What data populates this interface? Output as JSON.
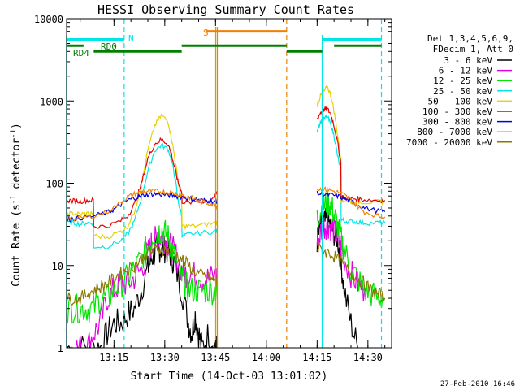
{
  "chart_data": {
    "type": "line",
    "title": "HESSI Observing Summary Count Rates",
    "xlabel": "Start Time (14-Oct-03 13:01:02)",
    "ylabel": "Count Rate (s⁻¹ detector⁻¹)",
    "ylabel_parts": {
      "base": "Count Rate (s",
      "exp1": "-1",
      "mid": " detector",
      "exp2": "-1",
      "end": ")"
    },
    "y_scale": "log",
    "ylim": [
      1,
      10000
    ],
    "xlim_minutes": [
      0,
      96
    ],
    "x_ticks": [
      {
        "label": "13:15",
        "t": 14
      },
      {
        "label": "13:30",
        "t": 29
      },
      {
        "label": "13:45",
        "t": 44
      },
      {
        "label": "14:00",
        "t": 59
      },
      {
        "label": "14:15",
        "t": 74
      },
      {
        "label": "14:30",
        "t": 89
      }
    ],
    "y_ticks": [
      {
        "label": "1",
        "v": 1
      },
      {
        "label": "10",
        "v": 10
      },
      {
        "label": "100",
        "v": 100
      },
      {
        "label": "1000",
        "v": 1000
      },
      {
        "label": "10000",
        "v": 10000
      }
    ],
    "legend": {
      "placement": "right",
      "header": [
        "Det 1,3,4,5,6,9,",
        "FDecim 1, Att 0"
      ],
      "entries": [
        {
          "name": "3 - 6 keV",
          "color": "#000000"
        },
        {
          "name": "6 - 12 keV",
          "color": "#e600e6"
        },
        {
          "name": "12 - 25 keV",
          "color": "#00e600"
        },
        {
          "name": "25 - 50 keV",
          "color": "#00e6e6"
        },
        {
          "name": "50 - 100 keV",
          "color": "#e6d200"
        },
        {
          "name": "100 - 300 keV",
          "color": "#e60000"
        },
        {
          "name": "300 - 800 keV",
          "color": "#0000e6"
        },
        {
          "name": "800 - 7000 keV",
          "color": "#f08000"
        },
        {
          "name": "7000 - 20000 keV",
          "color": "#8c7800"
        }
      ]
    },
    "annotations": [
      {
        "text": "N",
        "color": "#00e6e6"
      },
      {
        "text": "S",
        "color": "#f08000"
      },
      {
        "text": "RD0",
        "color": "#008000"
      },
      {
        "text": "RD4",
        "color": "#008000"
      }
    ],
    "flag_bars": [
      {
        "name": "N",
        "color": "#00e6e6",
        "level": 5600,
        "segments": [
          [
            0,
            17
          ],
          [
            75.5,
            93
          ]
        ]
      },
      {
        "name": "S",
        "color": "#f08000",
        "level": 7000,
        "segments": [
          [
            41,
            65
          ]
        ]
      },
      {
        "name": "RD0",
        "color": "#008000",
        "level": 4700,
        "segments": [
          [
            0,
            5
          ],
          [
            34,
            65
          ],
          [
            79,
            93
          ]
        ]
      },
      {
        "name": "RD4",
        "color": "#008000",
        "level": 4000,
        "segments": [
          [
            8,
            34
          ],
          [
            65,
            75.5
          ]
        ]
      }
    ],
    "night_markers_minutes": [
      17,
      65,
      93
    ],
    "day_markers_minutes": [
      0,
      75.5
    ],
    "saa_marker_minutes": 44.5,
    "series": [
      {
        "name": "3 - 6 keV",
        "color": "#000000",
        "x": [
          0,
          4,
          8,
          10,
          12,
          14,
          16,
          18,
          20,
          22,
          24,
          25,
          26,
          27,
          28,
          29,
          30,
          31,
          32,
          34,
          36,
          37,
          38,
          39,
          40,
          42,
          44,
          44.5,
          74,
          75,
          76,
          77,
          78,
          79,
          80,
          81,
          82,
          84,
          86
        ],
        "values": [
          1,
          1,
          1,
          1,
          1.5,
          2,
          2,
          2.5,
          3,
          5,
          9,
          12,
          14,
          16,
          16,
          16,
          15,
          13,
          10,
          5,
          2,
          1.5,
          2.5,
          1.5,
          1,
          1.5,
          1,
          1,
          20,
          28,
          32,
          35,
          30,
          25,
          22,
          12,
          5,
          2,
          1
        ]
      },
      {
        "name": "6 - 12 keV",
        "color": "#e600e6",
        "x": [
          0,
          2,
          4,
          6,
          8,
          10,
          12,
          14,
          16,
          18,
          20,
          22,
          24,
          25,
          26,
          27,
          28,
          29,
          30,
          31,
          32,
          34,
          35,
          36,
          38,
          40,
          42,
          44,
          44.5,
          74,
          75,
          76,
          77,
          78,
          79,
          80,
          81,
          82,
          84,
          86,
          88
        ],
        "values": [
          1,
          1,
          1,
          1,
          1.5,
          2,
          4,
          5,
          6,
          6,
          7,
          9,
          14,
          18,
          20,
          22,
          22,
          21,
          19,
          16,
          14,
          9,
          8,
          8,
          7.5,
          7,
          7,
          7.5,
          7,
          18,
          25,
          30,
          32,
          30,
          26,
          22,
          17,
          12,
          8,
          6,
          5
        ]
      },
      {
        "name": "12 - 25 keV",
        "color": "#00e600",
        "x": [
          0,
          2,
          4,
          6,
          8,
          10,
          12,
          14,
          16,
          18,
          20,
          22,
          24,
          26,
          27,
          28,
          29,
          30,
          31,
          32,
          34,
          35,
          36,
          38,
          40,
          42,
          44,
          44.5,
          74,
          75,
          76,
          77,
          78,
          79,
          80,
          81,
          82,
          84,
          86,
          88,
          90,
          92,
          94
        ],
        "values": [
          3,
          3,
          3,
          3,
          3,
          4,
          4,
          5,
          6,
          7,
          9,
          12,
          17,
          24,
          26,
          27,
          25,
          22,
          17,
          12,
          7,
          6,
          5,
          5,
          5,
          5,
          5,
          5,
          38,
          48,
          54,
          60,
          56,
          42,
          30,
          22,
          16,
          9,
          7,
          5,
          4.5,
          4,
          4
        ]
      },
      {
        "name": "25 - 50 keV",
        "color": "#00e6e6",
        "x": [
          0,
          2,
          4,
          6,
          7.9,
          8,
          12,
          16,
          18,
          20,
          22,
          24,
          26,
          28,
          30,
          31,
          32,
          33,
          34,
          34.1,
          36,
          40,
          44,
          44.5,
          74,
          75,
          76,
          77,
          78,
          79,
          80,
          81,
          81.1,
          82,
          84,
          86,
          88,
          92,
          94
        ],
        "values": [
          33,
          33,
          32,
          33,
          33,
          17,
          17,
          20,
          24,
          34,
          65,
          140,
          250,
          290,
          260,
          190,
          120,
          60,
          40,
          22,
          24,
          25,
          26,
          26,
          450,
          560,
          600,
          650,
          520,
          380,
          220,
          140,
          36,
          35,
          34,
          34,
          33,
          33,
          33
        ]
      },
      {
        "name": "50 - 100 keV",
        "color": "#e6d200",
        "x": [
          0,
          2,
          4,
          6,
          7.9,
          8,
          12,
          16,
          18,
          20,
          22,
          24,
          26,
          28,
          30,
          31,
          32,
          33,
          34,
          34.1,
          36,
          40,
          44,
          44.5,
          74,
          75,
          76,
          77,
          78,
          79,
          80,
          81,
          81.1,
          82,
          84,
          86,
          88,
          92,
          94
        ],
        "values": [
          43,
          43,
          42,
          43,
          43,
          23,
          22,
          26,
          30,
          45,
          90,
          250,
          500,
          670,
          560,
          350,
          200,
          100,
          62,
          30,
          30,
          31,
          33,
          33,
          900,
          1150,
          1300,
          1500,
          1200,
          750,
          400,
          200,
          62,
          61,
          60,
          60,
          59,
          59,
          59
        ]
      },
      {
        "name": "100 - 300 keV",
        "color": "#e60000",
        "x": [
          0,
          2,
          4,
          6,
          7.9,
          8,
          12,
          16,
          18,
          20,
          22,
          24,
          26,
          28,
          30,
          31,
          32,
          33,
          34,
          34.1,
          36,
          40,
          42,
          44,
          44.5,
          74,
          75,
          76,
          77,
          78,
          79,
          80,
          81,
          81.1,
          82,
          84,
          86,
          88,
          92,
          94
        ],
        "values": [
          62,
          61,
          60,
          62,
          62,
          30,
          30,
          35,
          40,
          55,
          95,
          200,
          300,
          340,
          300,
          220,
          150,
          100,
          80,
          60,
          58,
          60,
          62,
          70,
          80,
          600,
          720,
          780,
          800,
          700,
          500,
          320,
          180,
          68,
          67,
          65,
          65,
          63,
          62,
          62
        ]
      },
      {
        "name": "300 - 800 keV",
        "color": "#0000e6",
        "x": [
          0,
          2,
          4,
          8,
          12,
          14,
          16,
          18,
          20,
          22,
          24,
          26,
          28,
          30,
          32,
          34,
          36,
          38,
          40,
          42,
          44,
          44.5,
          74,
          76,
          78,
          80,
          82,
          84,
          86,
          88,
          92,
          94
        ],
        "values": [
          36,
          37,
          38,
          40,
          44,
          48,
          55,
          62,
          66,
          70,
          73,
          74,
          73,
          72,
          70,
          68,
          66,
          64,
          62,
          61,
          60,
          60,
          75,
          73,
          72,
          70,
          65,
          60,
          55,
          50,
          46,
          45
        ]
      },
      {
        "name": "800 - 7000 keV",
        "color": "#f08000",
        "x": [
          0,
          2,
          4,
          8,
          12,
          16,
          18,
          20,
          22,
          24,
          26,
          28,
          30,
          32,
          34,
          36,
          38,
          40,
          42,
          44,
          44.5,
          74,
          76,
          78,
          80,
          82,
          84,
          86,
          88,
          92,
          94
        ],
        "values": [
          36,
          37,
          38,
          40,
          45,
          58,
          68,
          74,
          78,
          80,
          80,
          79,
          78,
          75,
          72,
          68,
          64,
          60,
          57,
          54,
          52,
          85,
          84,
          82,
          78,
          72,
          62,
          52,
          45,
          40,
          39
        ]
      },
      {
        "name": "7000 - 20000 keV",
        "color": "#8c7800",
        "x": [
          0,
          2,
          4,
          6,
          8,
          10,
          12,
          14,
          16,
          18,
          20,
          22,
          24,
          26,
          28,
          30,
          32,
          34,
          36,
          38,
          40,
          42,
          44,
          44.5,
          74,
          76,
          78,
          80,
          82,
          84,
          86,
          88,
          90,
          92,
          94
        ],
        "values": [
          4,
          4,
          4,
          4.5,
          5,
          5.5,
          6,
          7,
          8,
          9,
          10,
          12,
          14,
          15,
          16,
          15,
          14,
          12,
          10,
          8.5,
          7.5,
          7,
          6.5,
          6,
          16,
          15,
          14,
          12,
          10,
          8,
          7,
          6,
          5,
          4.5,
          4
        ]
      }
    ]
  },
  "timestamp": "27-Feb-2010 16:46"
}
